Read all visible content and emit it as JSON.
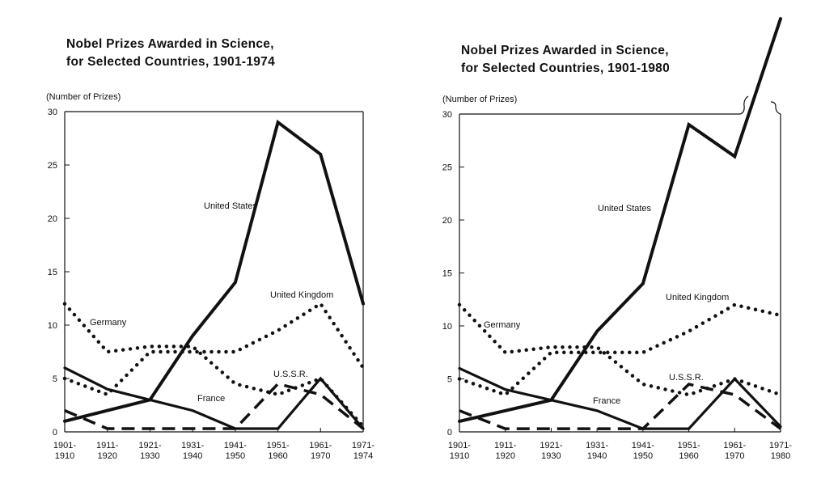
{
  "charts": [
    {
      "id": "left",
      "title_line1": "Nobel Prizes Awarded in Science,",
      "title_line2": "for Selected Countries, 1901-1974",
      "unit_label": "(Number of Prizes)"
    },
    {
      "id": "right",
      "title_line1": "Nobel Prizes Awarded in Science,",
      "title_line2": "for Selected Countries, 1901-1980",
      "unit_label": "(Number of Prizes)"
    }
  ],
  "chart_data": [
    {
      "type": "line",
      "title": "Nobel Prizes Awarded in Science, for Selected Countries, 1901-1974",
      "ylabel": "(Number of Prizes)",
      "xlabel": "",
      "ylim": [
        0,
        30
      ],
      "yticks": [
        0,
        5,
        10,
        15,
        20,
        25,
        30
      ],
      "categories": [
        [
          "1901-",
          "1910"
        ],
        [
          "1911-",
          "1920"
        ],
        [
          "1921-",
          "1930"
        ],
        [
          "1931-",
          "1940"
        ],
        [
          "1941-",
          "1950"
        ],
        [
          "1951-",
          "1960"
        ],
        [
          "1961-",
          "1970"
        ],
        [
          "1971-",
          "1974"
        ]
      ],
      "grid": false,
      "series": [
        {
          "name": "United States",
          "style": "solid-thick",
          "values": [
            1,
            2,
            3,
            9,
            14,
            29,
            26,
            12
          ]
        },
        {
          "name": "United Kingdom",
          "style": "dotted",
          "values": [
            5,
            3.5,
            7.5,
            7.5,
            7.5,
            9.5,
            12,
            6
          ]
        },
        {
          "name": "Germany",
          "style": "dotted",
          "values": [
            12,
            7.5,
            8,
            8,
            4.5,
            3.5,
            5,
            0.5
          ]
        },
        {
          "name": "France",
          "style": "solid",
          "values": [
            6,
            4,
            3,
            2,
            0.3,
            0.3,
            5,
            0.3
          ]
        },
        {
          "name": "U.S.S.R.",
          "style": "dashed",
          "values": [
            2,
            0.3,
            0.3,
            0.3,
            0.3,
            4.5,
            3.5,
            0.3
          ]
        }
      ]
    },
    {
      "type": "line",
      "title": "Nobel Prizes Awarded in Science, for Selected Countries, 1901-1980",
      "ylabel": "(Number of Prizes)",
      "xlabel": "",
      "ylim": [
        0,
        30
      ],
      "yticks": [
        0,
        5,
        10,
        15,
        20,
        25,
        30
      ],
      "categories": [
        [
          "1901-",
          "1910"
        ],
        [
          "1911-",
          "1920"
        ],
        [
          "1921-",
          "1930"
        ],
        [
          "1931-",
          "1940"
        ],
        [
          "1941-",
          "1950"
        ],
        [
          "1951-",
          "1960"
        ],
        [
          "1961-",
          "1970"
        ],
        [
          "1971-",
          "1980"
        ]
      ],
      "grid": false,
      "series": [
        {
          "name": "United States",
          "style": "solid-thick",
          "values": [
            1,
            2,
            3,
            9.5,
            14,
            29,
            26,
            39
          ]
        },
        {
          "name": "United Kingdom",
          "style": "dotted",
          "values": [
            5,
            3.5,
            7.5,
            7.5,
            7.5,
            9.5,
            12,
            11
          ]
        },
        {
          "name": "Germany",
          "style": "dotted",
          "values": [
            12,
            7.5,
            8,
            8,
            4.5,
            3.5,
            5,
            3.5
          ]
        },
        {
          "name": "France",
          "style": "solid",
          "values": [
            6,
            4,
            3,
            2,
            0.3,
            0.3,
            5,
            0.5
          ]
        },
        {
          "name": "U.S.S.R.",
          "style": "dashed",
          "values": [
            2,
            0.3,
            0.3,
            0.3,
            0.3,
            4.5,
            3.5,
            0.3
          ]
        }
      ]
    }
  ]
}
